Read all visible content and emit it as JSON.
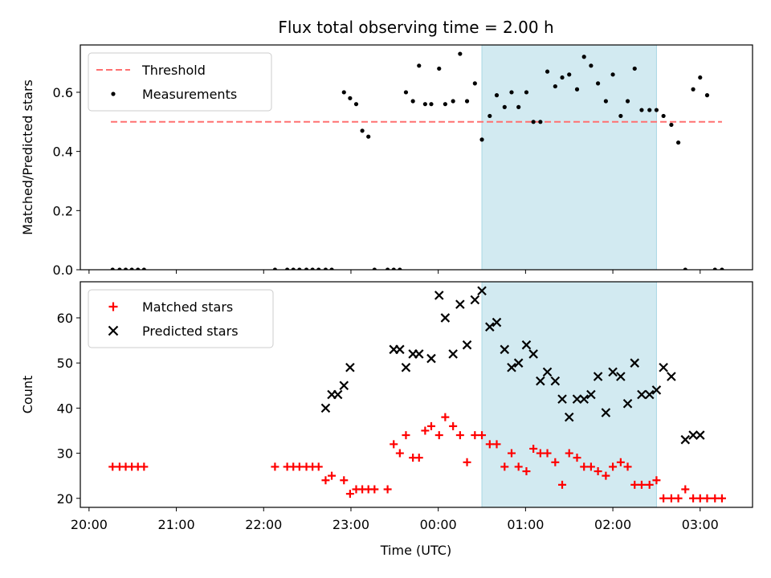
{
  "chart_data": {
    "type": "scatter",
    "title": "Flux total observing time = 2.00 h",
    "xlabel": "Time (UTC)",
    "x_tick_labels": [
      "20:00",
      "21:00",
      "22:00",
      "23:00",
      "00:00",
      "01:00",
      "02:00",
      "03:00"
    ],
    "x_tick_values": [
      -4.0,
      -3.0,
      -2.0,
      -1.0,
      0.0,
      1.0,
      2.0,
      3.0
    ],
    "x_unit": "hours relative to 00:00 UTC",
    "xlim": [
      -4.1,
      3.6
    ],
    "highlight_span": [
      0.5,
      2.5
    ],
    "highlight_color": "#d2eaf1",
    "panels": [
      {
        "ylabel": "Matched/Predicted stars",
        "ylim": [
          0,
          0.76
        ],
        "y_ticks": [
          "0.0",
          "0.2",
          "0.4",
          "0.6"
        ],
        "legend_position": "top-left",
        "series": [
          {
            "name": "Threshold",
            "kind": "line",
            "style": "dashed",
            "color": "#ff7070",
            "x": [
              -3.75,
              3.25
            ],
            "y": [
              0.5,
              0.5
            ]
          },
          {
            "name": "Measurements",
            "kind": "scatter",
            "marker": "dot",
            "color": "#000000",
            "x": [
              -3.73,
              -3.65,
              -3.58,
              -3.51,
              -3.44,
              -3.37,
              -1.87,
              -1.73,
              -1.66,
              -1.59,
              -1.51,
              -1.44,
              -1.37,
              -1.29,
              -1.22,
              -1.08,
              -1.01,
              -0.94,
              -0.87,
              -0.8,
              -0.73,
              -0.58,
              -0.51,
              -0.44,
              -0.37,
              -0.29,
              -0.22,
              -0.15,
              -0.08,
              0.01,
              0.08,
              0.17,
              0.25,
              0.33,
              0.42,
              0.5,
              0.59,
              0.67,
              0.76,
              0.84,
              0.92,
              1.01,
              1.09,
              1.17,
              1.25,
              1.34,
              1.42,
              1.5,
              1.59,
              1.67,
              1.75,
              1.83,
              1.92,
              2.0,
              2.09,
              2.17,
              2.25,
              2.33,
              2.42,
              2.5,
              2.58,
              2.67,
              2.75,
              2.83,
              2.92,
              3.0,
              3.08,
              3.17,
              3.25
            ],
            "y": [
              0,
              0,
              0,
              0,
              0,
              0,
              0,
              0,
              0,
              0,
              0,
              0,
              0,
              0,
              0,
              0.6,
              0.58,
              0.56,
              0.47,
              0.45,
              0,
              0,
              0,
              0,
              0.6,
              0.57,
              0.69,
              0.56,
              0.56,
              0.68,
              0.56,
              0.57,
              0.73,
              0.57,
              0.63,
              0.44,
              0.52,
              0.59,
              0.55,
              0.6,
              0.55,
              0.6,
              0.5,
              0.5,
              0.67,
              0.62,
              0.65,
              0.66,
              0.61,
              0.72,
              0.69,
              0.63,
              0.57,
              0.66,
              0.52,
              0.57,
              0.68,
              0.54,
              0.54,
              0.54,
              0.52,
              0.49,
              0.43,
              0,
              0.61,
              0.65,
              0.59,
              0,
              0
            ]
          }
        ]
      },
      {
        "ylabel": "Count",
        "ylim": [
          18,
          68
        ],
        "y_ticks": [
          "20",
          "30",
          "40",
          "50",
          "60"
        ],
        "legend_position": "top-left",
        "series": [
          {
            "name": "Matched stars",
            "kind": "scatter",
            "marker": "plus",
            "color": "#ff0000",
            "x": [
              -3.73,
              -3.65,
              -3.58,
              -3.51,
              -3.44,
              -3.37,
              -1.87,
              -1.73,
              -1.66,
              -1.59,
              -1.51,
              -1.44,
              -1.37,
              -1.29,
              -1.22,
              -1.08,
              -1.01,
              -0.94,
              -0.87,
              -0.8,
              -0.73,
              -0.58,
              -0.51,
              -0.44,
              -0.37,
              -0.29,
              -0.22,
              -0.15,
              -0.08,
              0.01,
              0.08,
              0.17,
              0.25,
              0.33,
              0.42,
              0.5,
              0.59,
              0.67,
              0.76,
              0.84,
              0.92,
              1.01,
              1.09,
              1.17,
              1.25,
              1.34,
              1.42,
              1.5,
              1.59,
              1.67,
              1.75,
              1.83,
              1.92,
              2.0,
              2.09,
              2.17,
              2.25,
              2.33,
              2.42,
              2.5,
              2.58,
              2.67,
              2.75,
              2.83,
              2.92,
              3.0,
              3.08,
              3.17,
              3.25
            ],
            "y": [
              27,
              27,
              27,
              27,
              27,
              27,
              27,
              27,
              27,
              27,
              27,
              27,
              27,
              24,
              25,
              24,
              21,
              22,
              22,
              22,
              22,
              22,
              32,
              30,
              34,
              29,
              29,
              35,
              36,
              34,
              38,
              36,
              34,
              28,
              34,
              34,
              32,
              32,
              27,
              30,
              27,
              26,
              31,
              30,
              30,
              28,
              23,
              30,
              29,
              27,
              27,
              26,
              25,
              27,
              28,
              27,
              23,
              23,
              23,
              24,
              20,
              20,
              20,
              22,
              20,
              20,
              20,
              20,
              20
            ]
          },
          {
            "name": "Predicted stars",
            "kind": "scatter",
            "marker": "cross",
            "color": "#000000",
            "x": [
              -1.29,
              -1.22,
              -1.15,
              -1.08,
              -1.01,
              -0.51,
              -0.44,
              -0.37,
              -0.29,
              -0.22,
              -0.08,
              0.01,
              0.08,
              0.17,
              0.25,
              0.33,
              0.42,
              0.5,
              0.59,
              0.67,
              0.76,
              0.84,
              0.92,
              1.01,
              1.09,
              1.17,
              1.25,
              1.34,
              1.42,
              1.5,
              1.59,
              1.67,
              1.75,
              1.83,
              1.92,
              2.0,
              2.09,
              2.17,
              2.25,
              2.33,
              2.42,
              2.5,
              2.58,
              2.67,
              2.83,
              2.92,
              3.0
            ],
            "y": [
              40,
              43,
              43,
              45,
              49,
              53,
              53,
              49,
              52,
              52,
              51,
              65,
              60,
              52,
              63,
              54,
              64,
              66,
              58,
              59,
              53,
              49,
              50,
              54,
              52,
              46,
              48,
              46,
              42,
              38,
              42,
              42,
              43,
              47,
              39,
              48,
              47,
              41,
              50,
              43,
              43,
              44,
              49,
              47,
              33,
              34,
              34
            ]
          }
        ]
      }
    ]
  }
}
